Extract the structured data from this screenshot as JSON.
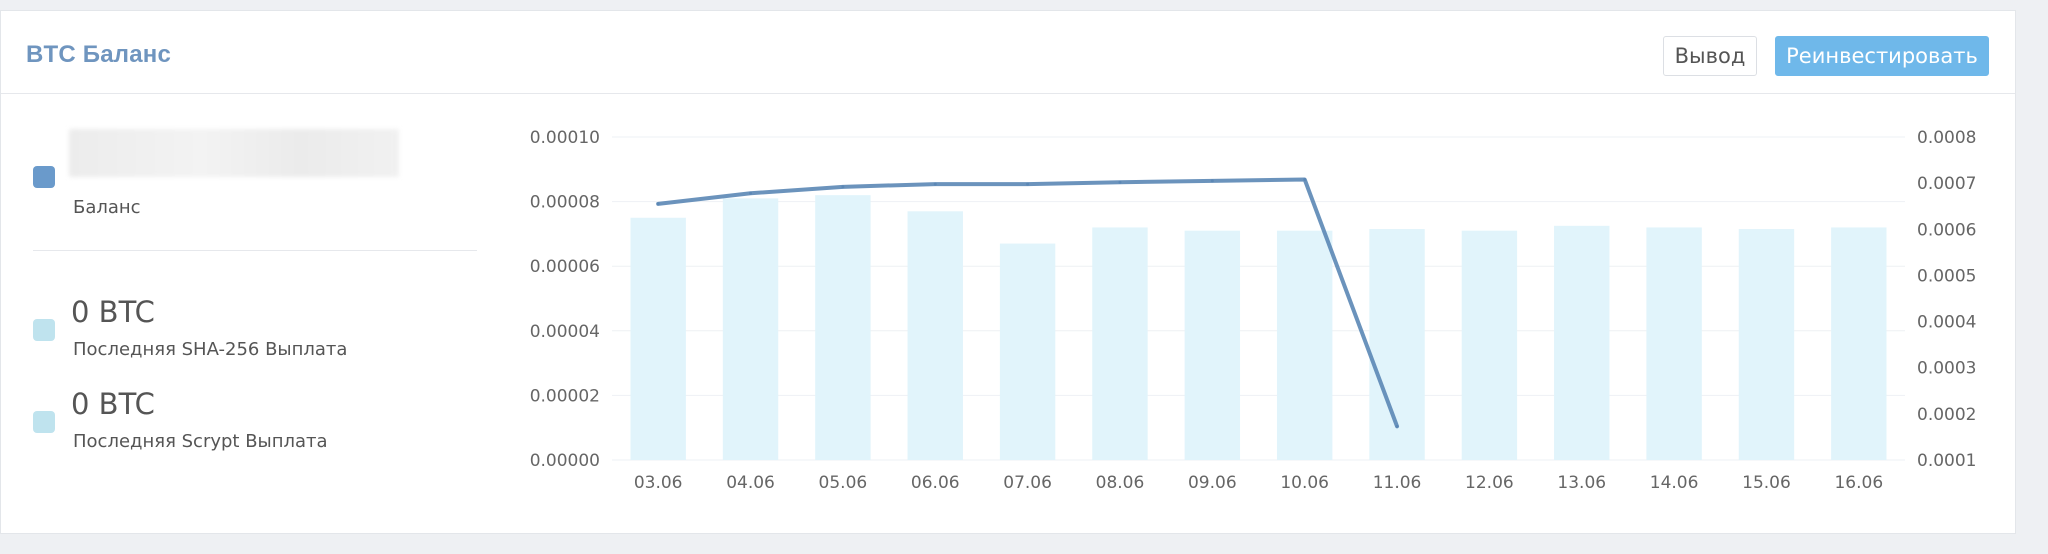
{
  "panel": {
    "title": "BTC Баланс",
    "buttons": {
      "withdraw": "Вывод",
      "reinvest": "Реинвестировать"
    }
  },
  "stats": {
    "balance": {
      "label": "Баланс",
      "color": "#6a9acb"
    },
    "sha256": {
      "value": "0 BTC",
      "label": "Последняя SHA-256 Выплата",
      "color": "#bfe3ee"
    },
    "scrypt": {
      "value": "0 BTC",
      "label": "Последняя Scrypt Выплата",
      "color": "#bfe3ee"
    }
  },
  "colors": {
    "accent": "#6fb8ea",
    "title": "#6f95bf",
    "bar": "#e1f4fb",
    "line": "#5b87b5"
  },
  "chart_data": {
    "type": "bar",
    "categories": [
      "03.06",
      "04.06",
      "05.06",
      "06.06",
      "07.06",
      "08.06",
      "09.06",
      "10.06",
      "11.06",
      "12.06",
      "13.06",
      "14.06",
      "15.06",
      "16.06"
    ],
    "series": [
      {
        "type": "bar",
        "axis": "left",
        "values": [
          7.5e-05,
          8.1e-05,
          8.2e-05,
          7.7e-05,
          6.7e-05,
          7.2e-05,
          7.1e-05,
          7.1e-05,
          7.15e-05,
          7.1e-05,
          7.25e-05,
          7.2e-05,
          7.15e-05,
          7.2e-05
        ]
      },
      {
        "type": "line",
        "axis": "right",
        "values": [
          0.000655,
          0.000678,
          0.000692,
          0.000698,
          0.000698,
          0.000702,
          0.000705,
          0.000708,
          0.000173,
          null,
          null,
          null,
          null,
          null
        ]
      }
    ],
    "y_left": {
      "min": 0,
      "max": 0.0001,
      "ticks": [
        "0.00000",
        "0.00002",
        "0.00004",
        "0.00006",
        "0.00008",
        "0.00010"
      ]
    },
    "y_right": {
      "min": 0.0001,
      "max": 0.0008,
      "ticks": [
        "0.0001",
        "0.0002",
        "0.0003",
        "0.0004",
        "0.0005",
        "0.0006",
        "0.0007",
        "0.0008"
      ]
    },
    "grid": true
  }
}
